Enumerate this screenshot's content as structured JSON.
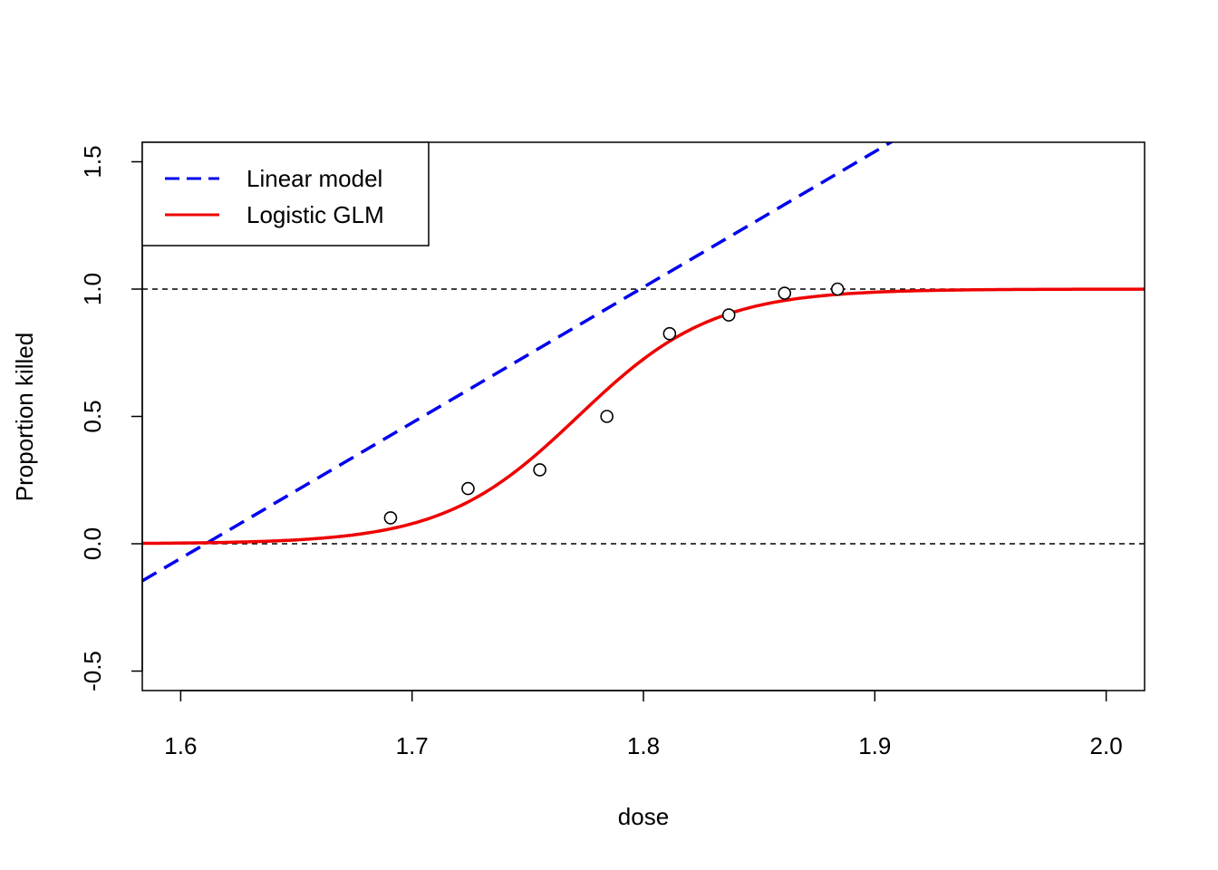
{
  "chart_data": {
    "type": "line",
    "title": "",
    "xlabel": "dose",
    "ylabel": "Proportion killed",
    "xlim": [
      1.5834,
      2.0166
    ],
    "ylim": [
      -0.5765,
      1.5765
    ],
    "xticks": [
      1.6,
      1.7,
      1.8,
      1.9,
      2.0
    ],
    "xtick_labels": [
      "1.6",
      "1.7",
      "1.8",
      "1.9",
      "2.0"
    ],
    "yticks": [
      -0.5,
      0.0,
      0.5,
      1.0,
      1.5
    ],
    "ytick_labels": [
      "-0.5",
      "0.0",
      "0.5",
      "1.0",
      "1.5"
    ],
    "reference_lines": [
      0,
      1
    ],
    "grid": false,
    "legend_position": "top-left",
    "points": {
      "x": [
        1.6907,
        1.7242,
        1.7552,
        1.7842,
        1.8113,
        1.8369,
        1.861,
        1.8839
      ],
      "y": [
        0.1017,
        0.2167,
        0.2903,
        0.5,
        0.825,
        0.8983,
        0.9839,
        1.0
      ]
    },
    "series": [
      {
        "name": "Linear model",
        "style": "dashed",
        "color": "#0000ee",
        "intercept": -8.5758,
        "slope": 5.324
      },
      {
        "name": "Logistic GLM",
        "style": "solid",
        "color": "#ee0000",
        "intercept": -60.717,
        "slope": 34.27
      }
    ]
  }
}
